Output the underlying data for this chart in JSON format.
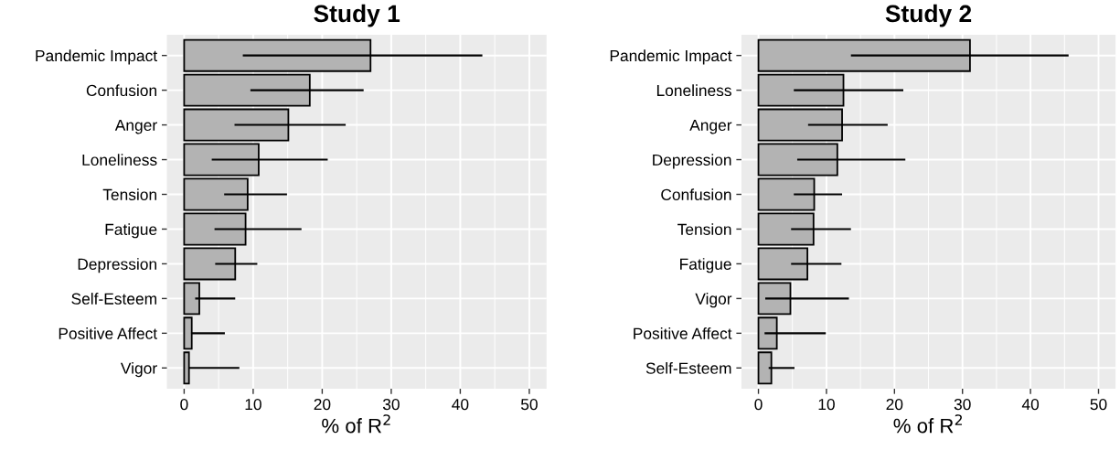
{
  "chart_data": [
    {
      "type": "bar",
      "orientation": "horizontal",
      "title": "Study 1",
      "xlabel": "% of R$^{2}$",
      "categories": [
        "Pandemic Impact",
        "Confusion",
        "Anger",
        "Loneliness",
        "Tension",
        "Fatigue",
        "Depression",
        "Self-Esteem",
        "Positive Affect",
        "Vigor"
      ],
      "values": [
        27.0,
        18.2,
        15.1,
        10.8,
        9.2,
        8.9,
        7.4,
        2.2,
        1.1,
        0.7
      ],
      "errors": [
        [
          8.5,
          43.2
        ],
        [
          9.6,
          26.0
        ],
        [
          7.3,
          23.4
        ],
        [
          4.0,
          20.8
        ],
        [
          5.8,
          14.9
        ],
        [
          4.4,
          17.0
        ],
        [
          4.5,
          10.6
        ],
        [
          1.6,
          7.4
        ],
        [
          1.0,
          5.9
        ],
        [
          0.7,
          8.0
        ]
      ],
      "color": "#b3b3b3",
      "xlim": [
        -2.5,
        52.5
      ],
      "xticks": [
        0,
        10,
        20,
        30,
        40,
        50
      ],
      "grid": true
    },
    {
      "type": "bar",
      "orientation": "horizontal",
      "title": "Study 2",
      "xlabel": "% of R$^{2}$",
      "categories": [
        "Pandemic Impact",
        "Loneliness",
        "Anger",
        "Depression",
        "Confusion",
        "Tension",
        "Fatigue",
        "Vigor",
        "Positive Affect",
        "Self-Esteem"
      ],
      "values": [
        31.1,
        12.5,
        12.3,
        11.6,
        8.2,
        8.1,
        7.2,
        4.7,
        2.7,
        1.9
      ],
      "errors": [
        [
          13.6,
          45.6
        ],
        [
          5.2,
          21.3
        ],
        [
          7.3,
          19.0
        ],
        [
          5.7,
          21.6
        ],
        [
          5.2,
          12.3
        ],
        [
          4.8,
          13.6
        ],
        [
          4.8,
          12.2
        ],
        [
          1.0,
          13.3
        ],
        [
          0.9,
          9.9
        ],
        [
          1.5,
          5.3
        ]
      ],
      "color": "#b3b3b3",
      "xlim": [
        -2.5,
        52.5
      ],
      "xticks": [
        0,
        10,
        20,
        30,
        40,
        50
      ],
      "grid": true
    }
  ]
}
